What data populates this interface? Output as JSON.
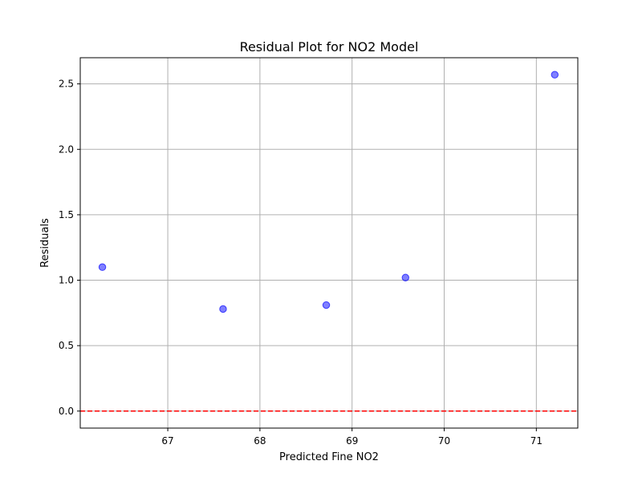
{
  "chart_data": {
    "type": "scatter",
    "title": "Residual Plot for NO2 Model",
    "xlabel": "Predicted Fine NO2",
    "ylabel": "Residuals",
    "xlim": [
      66.05,
      71.45
    ],
    "ylim": [
      -0.13,
      2.7
    ],
    "x_ticks": [
      67,
      68,
      69,
      70,
      71
    ],
    "y_ticks": [
      0.0,
      0.5,
      1.0,
      1.5,
      2.0,
      2.5
    ],
    "x_tick_labels": [
      "67",
      "68",
      "69",
      "70",
      "71"
    ],
    "y_tick_labels": [
      "0.0",
      "0.5",
      "1.0",
      "1.5",
      "2.0",
      "2.5"
    ],
    "grid": true,
    "series": [
      {
        "x": [
          66.29,
          67.6,
          68.72,
          69.58,
          71.2
        ],
        "y": [
          1.1,
          0.78,
          0.81,
          1.02,
          2.57
        ],
        "color": "#0000ff",
        "alpha": 0.5
      }
    ],
    "reference_line": {
      "y": 0.0,
      "style": "dashed",
      "color": "#ff0000"
    }
  }
}
